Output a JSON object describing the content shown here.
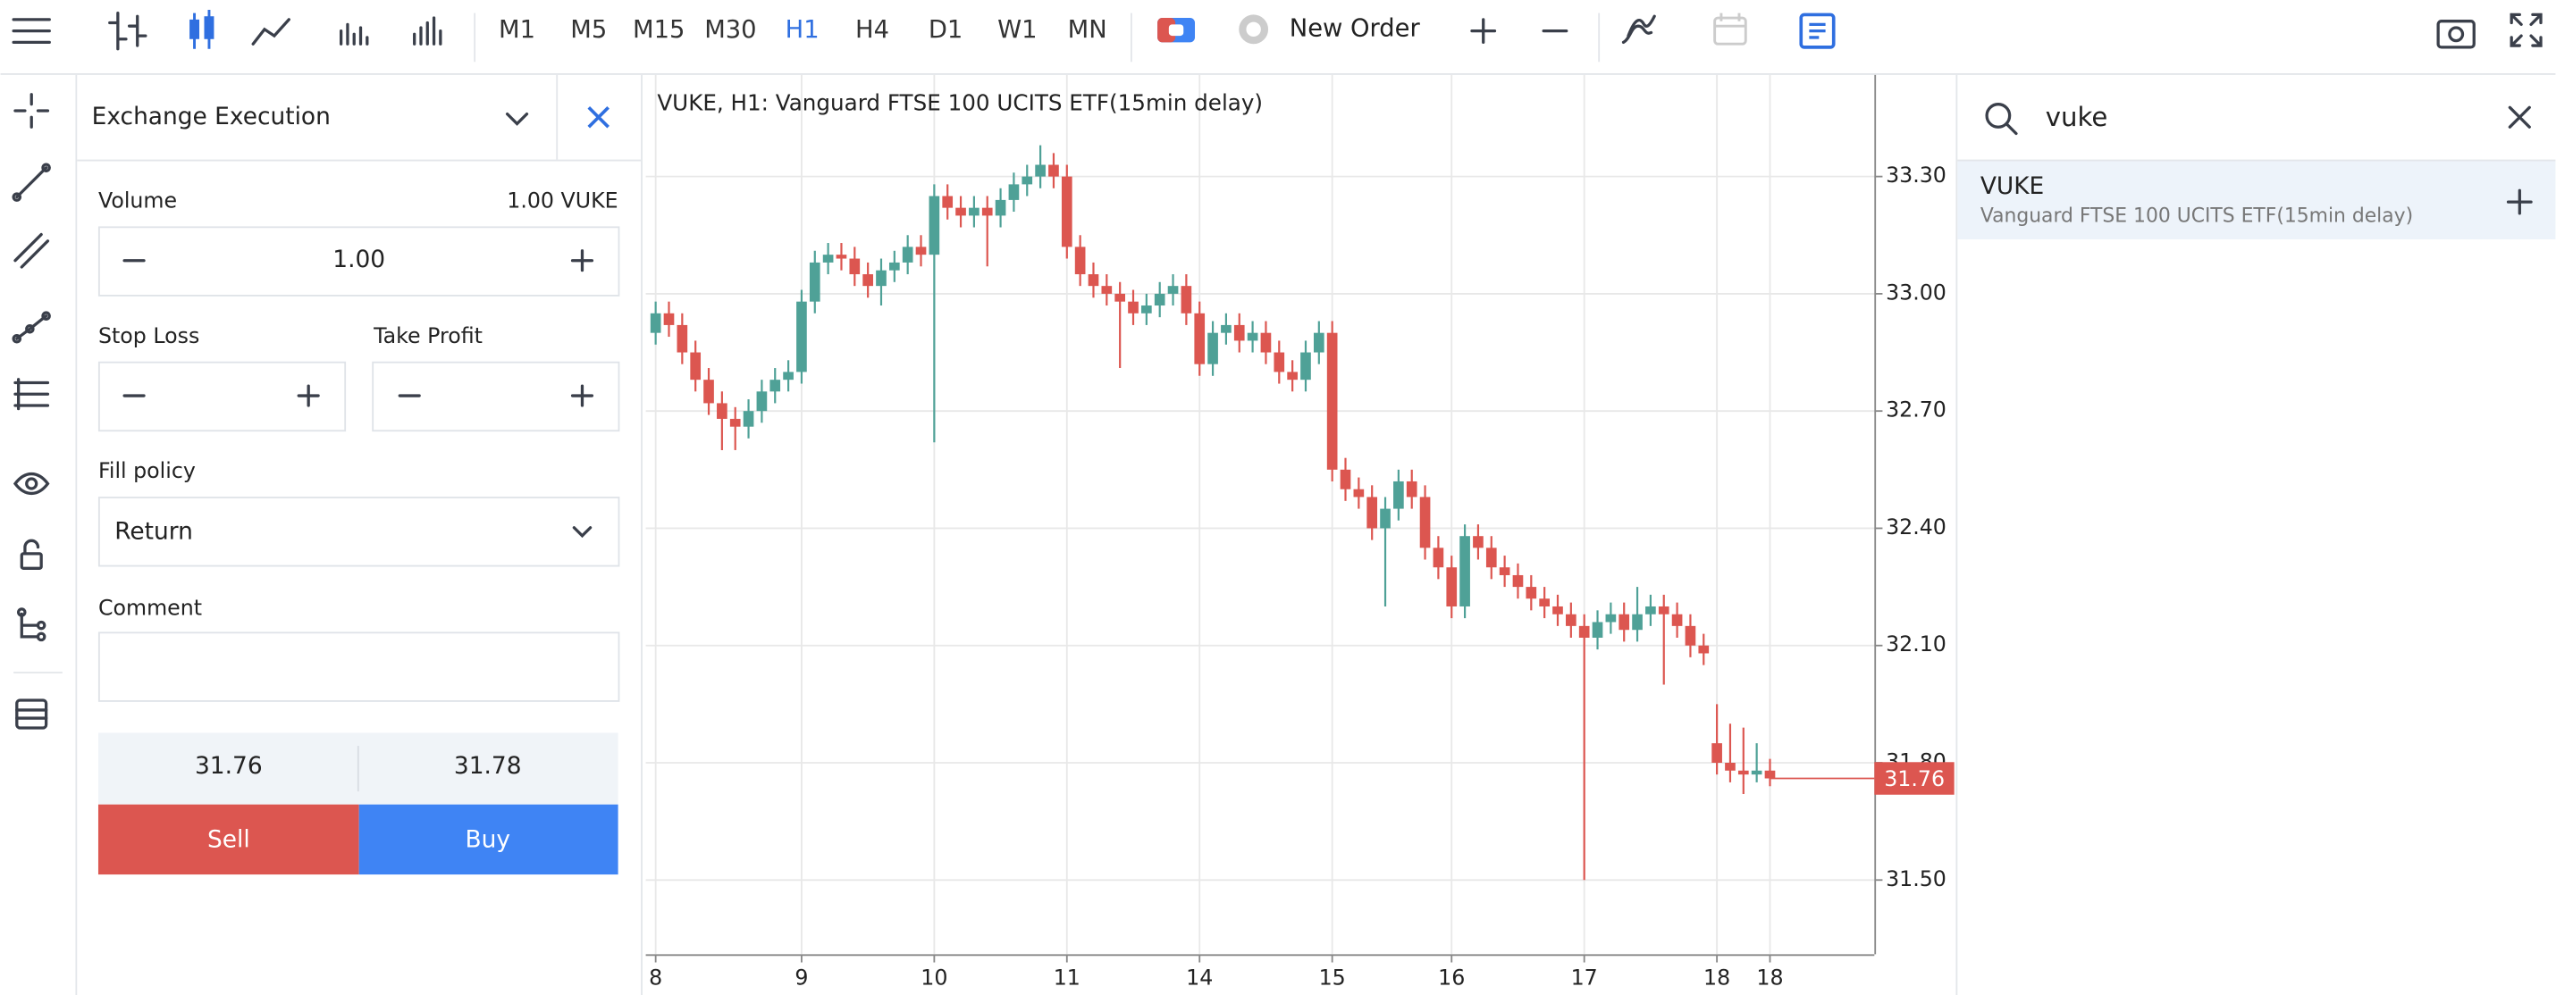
{
  "toolbar": {
    "timeframes": [
      "M1",
      "M5",
      "M15",
      "M30",
      "H1",
      "H4",
      "D1",
      "W1",
      "MN"
    ],
    "active_timeframe": "H1",
    "new_order": "New Order"
  },
  "order_panel": {
    "title": "Exchange Execution",
    "volume_label": "Volume",
    "volume_info": "1.00 VUKE",
    "volume": "1.00",
    "stop_loss": "Stop Loss",
    "take_profit": "Take Profit",
    "fill_policy_label": "Fill policy",
    "fill_policy": "Return",
    "comment_label": "Comment",
    "bid": "31.76",
    "ask": "31.78",
    "sell": "Sell",
    "buy": "Buy"
  },
  "search": {
    "query": "vuke",
    "result_symbol": "VUKE",
    "result_name": "Vanguard FTSE 100 UCITS ETF(15min delay)"
  },
  "chart_data": {
    "type": "candlestick",
    "title": "VUKE, H1: Vanguard FTSE 100 UCITS ETF(15min delay)",
    "categories": [
      "8",
      null,
      null,
      null,
      null,
      null,
      null,
      null,
      null,
      null,
      null,
      "9",
      null,
      null,
      null,
      null,
      null,
      null,
      null,
      null,
      null,
      "10",
      null,
      null,
      null,
      null,
      null,
      null,
      null,
      null,
      null,
      "11",
      null,
      null,
      null,
      null,
      null,
      null,
      null,
      null,
      null,
      "14",
      null,
      null,
      null,
      null,
      null,
      null,
      null,
      null,
      null,
      "15",
      null,
      null,
      null,
      null,
      null,
      null,
      null,
      null,
      "16",
      null,
      null,
      null,
      null,
      null,
      null,
      null,
      null,
      null,
      "17",
      null,
      null,
      null,
      null,
      null,
      null,
      null,
      null,
      null,
      "18",
      null,
      null,
      null,
      "18"
    ],
    "open": [
      32.9,
      32.95,
      32.92,
      32.85,
      32.78,
      32.72,
      32.68,
      32.66,
      32.7,
      32.75,
      32.78,
      32.8,
      32.98,
      33.08,
      33.1,
      33.09,
      33.05,
      33.02,
      33.06,
      33.08,
      33.12,
      33.1,
      33.25,
      33.22,
      33.2,
      33.22,
      33.2,
      33.24,
      33.28,
      33.3,
      33.33,
      33.3,
      33.12,
      33.05,
      33.02,
      33.0,
      32.98,
      32.95,
      32.97,
      33.0,
      33.02,
      32.95,
      32.82,
      32.9,
      32.92,
      32.88,
      32.9,
      32.85,
      32.8,
      32.78,
      32.85,
      32.9,
      32.55,
      32.5,
      32.48,
      32.4,
      32.45,
      32.52,
      32.48,
      32.35,
      32.3,
      32.2,
      32.38,
      32.35,
      32.3,
      32.28,
      32.25,
      32.22,
      32.2,
      32.18,
      32.15,
      32.12,
      32.16,
      32.18,
      32.14,
      32.18,
      32.2,
      32.18,
      32.15,
      32.1,
      31.85,
      31.8,
      31.78,
      31.77,
      31.78
    ],
    "high": [
      32.98,
      32.98,
      32.95,
      32.88,
      32.81,
      32.75,
      32.71,
      32.73,
      32.78,
      32.81,
      32.83,
      33.01,
      33.11,
      33.13,
      33.13,
      33.12,
      33.08,
      33.09,
      33.11,
      33.15,
      33.15,
      33.28,
      33.28,
      33.25,
      33.25,
      33.25,
      33.27,
      33.31,
      33.33,
      33.38,
      33.36,
      33.33,
      33.15,
      33.08,
      33.05,
      33.03,
      33.01,
      33.0,
      33.03,
      33.05,
      33.05,
      32.98,
      32.93,
      32.95,
      32.95,
      32.93,
      32.93,
      32.88,
      32.83,
      32.88,
      32.93,
      32.93,
      32.58,
      32.53,
      32.51,
      32.48,
      32.55,
      32.55,
      32.51,
      32.38,
      32.33,
      32.41,
      32.41,
      32.38,
      32.33,
      32.31,
      32.28,
      32.25,
      32.23,
      32.21,
      32.18,
      32.19,
      32.21,
      32.21,
      32.25,
      32.23,
      32.23,
      32.21,
      32.18,
      32.13,
      31.95,
      31.9,
      31.89,
      31.85,
      31.81
    ],
    "low": [
      32.87,
      32.89,
      32.82,
      32.75,
      32.69,
      32.6,
      32.6,
      32.63,
      32.67,
      32.72,
      32.75,
      32.77,
      32.95,
      33.05,
      33.06,
      33.02,
      32.99,
      32.97,
      33.03,
      33.05,
      33.07,
      32.62,
      33.19,
      33.17,
      33.17,
      33.07,
      33.17,
      33.21,
      33.25,
      33.27,
      33.27,
      33.09,
      33.02,
      32.99,
      32.97,
      32.81,
      32.92,
      32.92,
      32.94,
      32.97,
      32.92,
      32.79,
      32.79,
      32.87,
      32.85,
      32.85,
      32.82,
      32.77,
      32.75,
      32.75,
      32.82,
      32.52,
      32.47,
      32.45,
      32.37,
      32.2,
      32.42,
      32.45,
      32.32,
      32.27,
      32.17,
      32.17,
      32.32,
      32.27,
      32.25,
      32.22,
      32.19,
      32.17,
      32.15,
      32.12,
      31.5,
      32.09,
      32.13,
      32.11,
      32.11,
      32.15,
      32.0,
      32.12,
      32.07,
      32.05,
      31.77,
      31.75,
      31.72,
      31.75,
      31.74
    ],
    "close": [
      32.95,
      32.92,
      32.85,
      32.78,
      32.72,
      32.68,
      32.66,
      32.7,
      32.75,
      32.78,
      32.8,
      32.98,
      33.08,
      33.1,
      33.09,
      33.05,
      33.02,
      33.06,
      33.08,
      33.12,
      33.1,
      33.25,
      33.22,
      33.2,
      33.22,
      33.2,
      33.24,
      33.28,
      33.3,
      33.33,
      33.3,
      33.12,
      33.05,
      33.02,
      33.0,
      32.98,
      32.95,
      32.97,
      33.0,
      33.02,
      32.95,
      32.82,
      32.9,
      32.92,
      32.88,
      32.9,
      32.85,
      32.8,
      32.78,
      32.85,
      32.9,
      32.55,
      32.5,
      32.48,
      32.4,
      32.45,
      32.52,
      32.48,
      32.35,
      32.3,
      32.2,
      32.38,
      32.35,
      32.3,
      32.28,
      32.25,
      32.22,
      32.2,
      32.18,
      32.15,
      32.12,
      32.16,
      32.18,
      32.14,
      32.18,
      32.2,
      32.18,
      32.15,
      32.1,
      32.08,
      31.8,
      31.78,
      31.77,
      31.78,
      31.76
    ],
    "last_price": 31.76,
    "up_color": "#4fa197",
    "down_color": "#dc5650",
    "ylim": [
      31.31,
      33.56
    ],
    "yticks": [
      {
        "value": 31.5,
        "label": "31.50"
      },
      {
        "value": 31.8,
        "label": "31.80"
      },
      {
        "value": 32.1,
        "label": "32.10"
      },
      {
        "value": 32.4,
        "label": "32.40"
      },
      {
        "value": 32.7,
        "label": "32.70"
      },
      {
        "value": 33.0,
        "label": "33.00"
      },
      {
        "value": 33.3,
        "label": "33.30"
      }
    ],
    "grid": true
  }
}
